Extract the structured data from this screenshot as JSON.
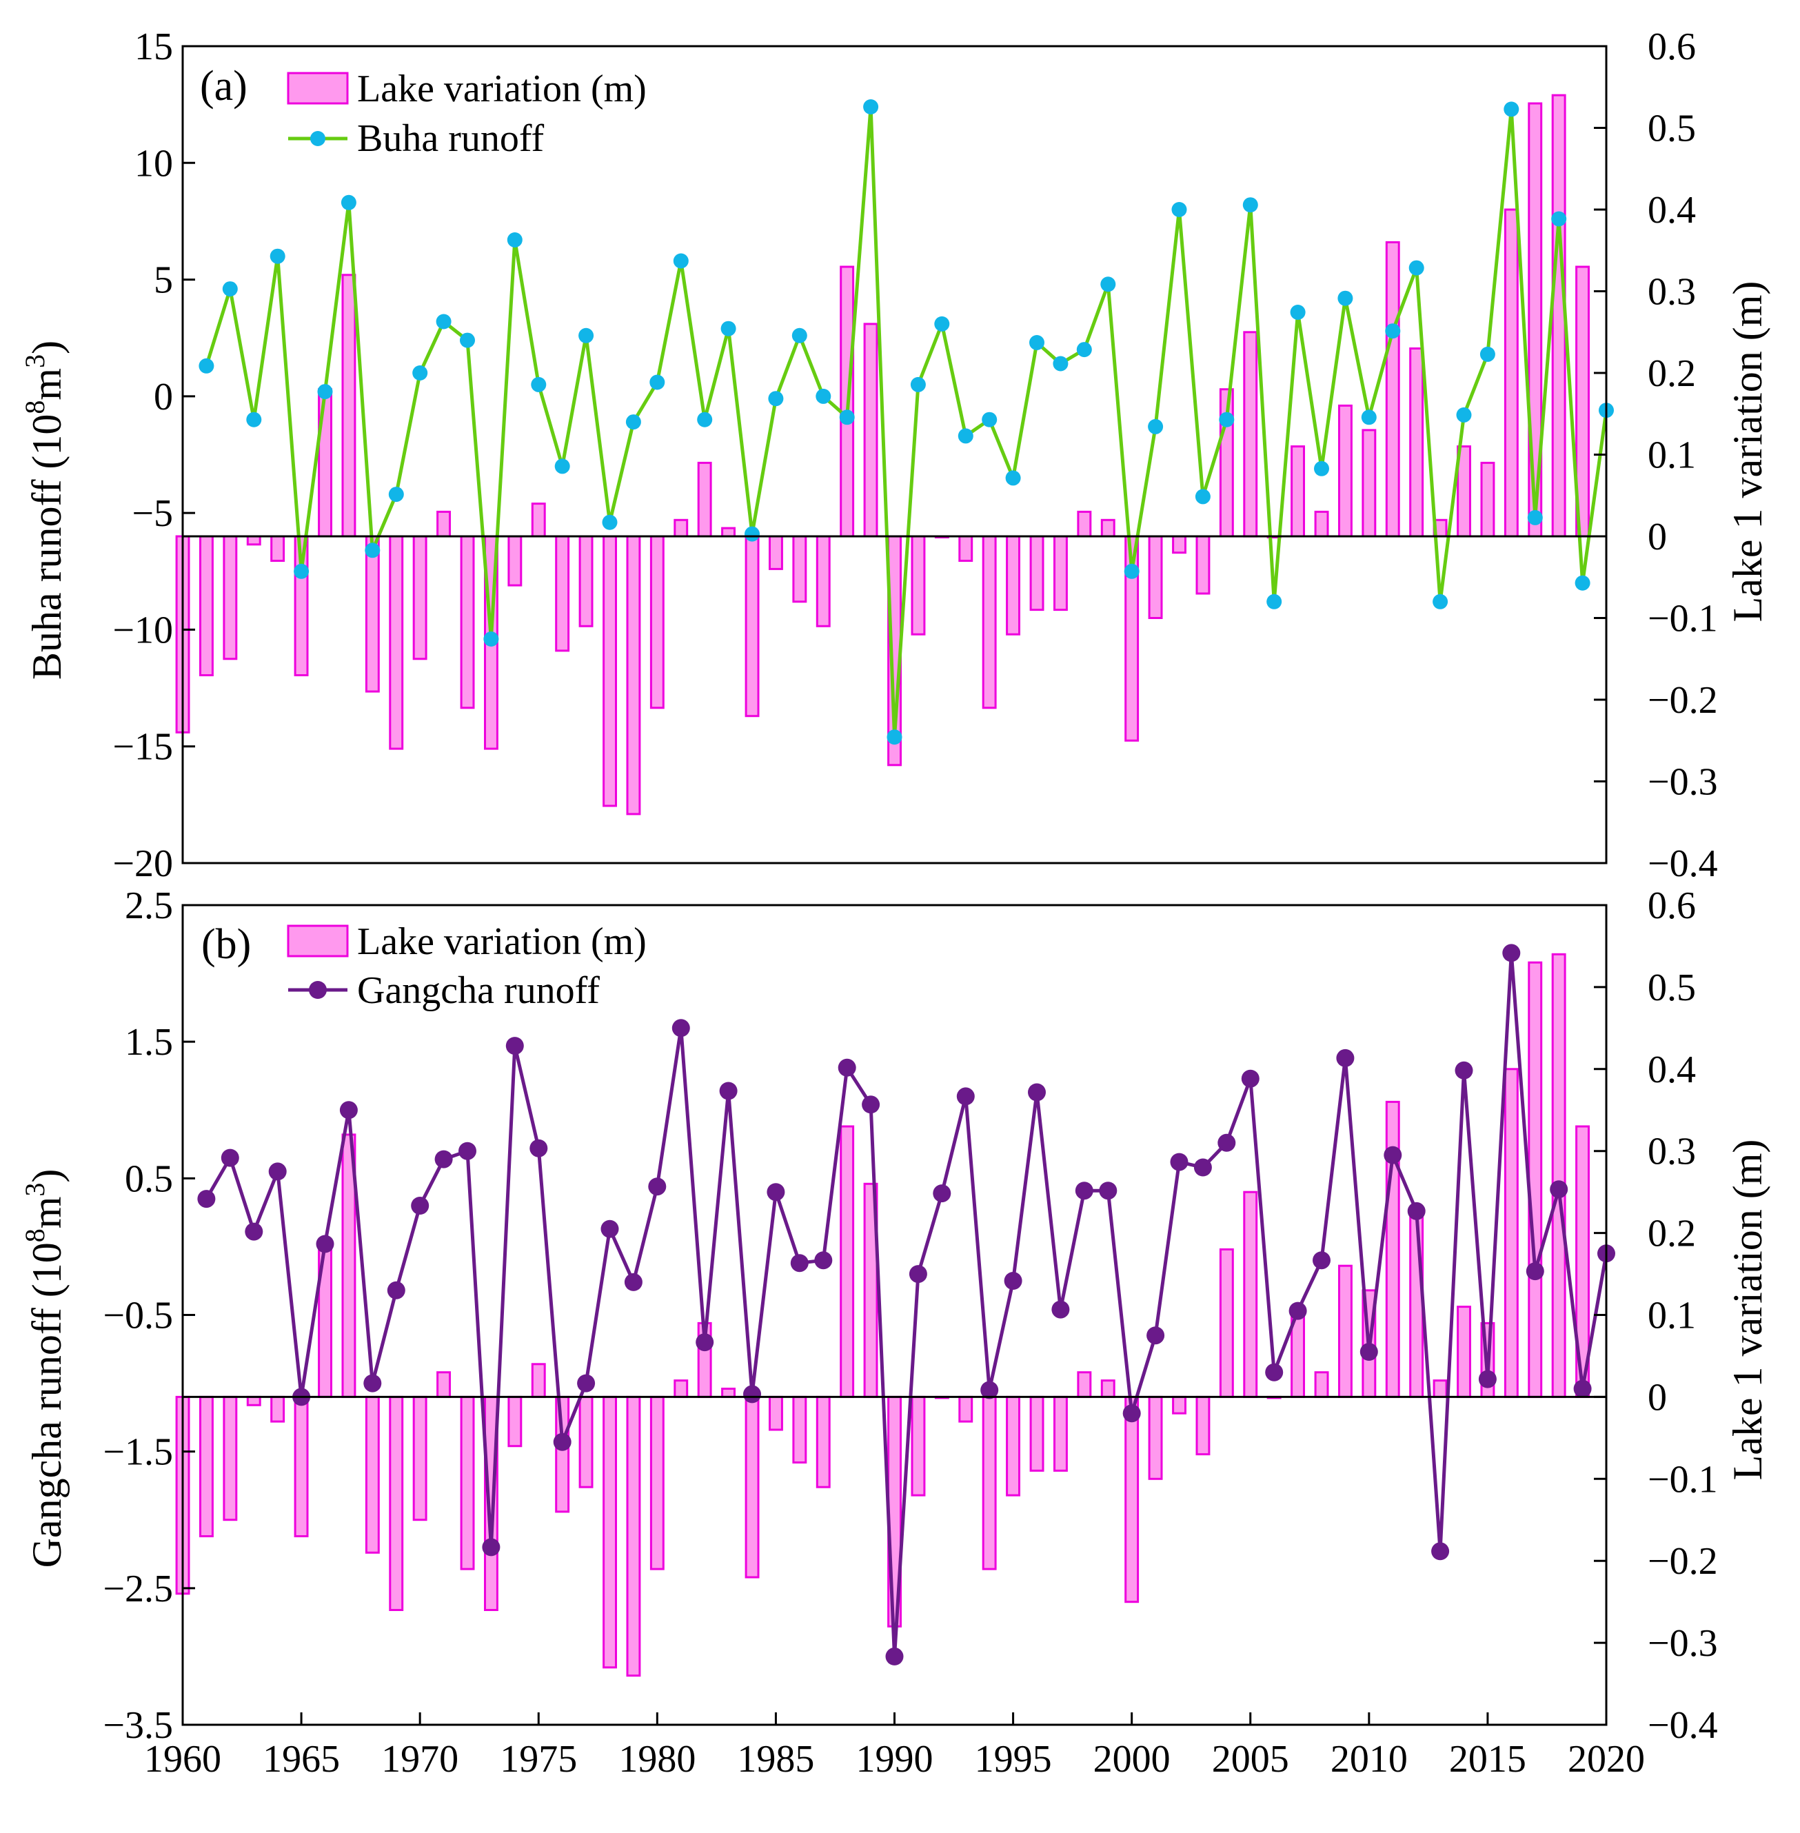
{
  "figure": {
    "x_ticks": [
      "1960",
      "1965",
      "1970",
      "1975",
      "1980",
      "1985",
      "1990",
      "1995",
      "2000",
      "2005",
      "2010",
      "2015",
      "2020"
    ]
  },
  "colors": {
    "bar_fill": "#ff99ee",
    "bar_stroke": "#ee00dd",
    "buha_line": "#66cc11",
    "buha_marker": "#11b5e8",
    "gangcha_line": "#6a1a8a",
    "zero_line": "#000000"
  },
  "chart_data": [
    {
      "type": "bar+line",
      "panel_label": "(a)",
      "ylabel": "Buha runoff (10⁸m³)",
      "ylabel_main": "Buha runoff (10",
      "ylabel_exp1": "8",
      "ylabel_mid": "m",
      "ylabel_exp2": "3",
      "ylabel_end": ")",
      "y2label": "Lake 1 variation (m)",
      "xlim": [
        1960,
        2020
      ],
      "ylim": [
        -20,
        15
      ],
      "y2lim": [
        -0.4,
        0.6
      ],
      "yticks": [
        "15",
        "10",
        "5",
        "0",
        "−5",
        "−10",
        "−15",
        "−20"
      ],
      "y2ticks": [
        "0.6",
        "0.5",
        "0.4",
        "0.3",
        "0.2",
        "0.1",
        "0",
        "−0.1",
        "−0.2",
        "−0.3",
        "−0.4"
      ],
      "legend": {
        "placement": "top-left",
        "bar_label": "Lake variation (m)",
        "line_label": "Buha runoff"
      },
      "years": [
        1960,
        1961,
        1962,
        1963,
        1964,
        1965,
        1966,
        1967,
        1968,
        1969,
        1970,
        1971,
        1972,
        1973,
        1974,
        1975,
        1976,
        1977,
        1978,
        1979,
        1980,
        1981,
        1982,
        1983,
        1984,
        1985,
        1986,
        1987,
        1988,
        1989,
        1990,
        1991,
        1992,
        1993,
        1994,
        1995,
        1996,
        1997,
        1998,
        1999,
        2000,
        2001,
        2002,
        2003,
        2004,
        2005,
        2006,
        2007,
        2008,
        2009,
        2010,
        2011,
        2012,
        2013,
        2014,
        2015,
        2016,
        2017,
        2018,
        2019
      ],
      "series": [
        {
          "name": "Lake variation (m)",
          "kind": "bar",
          "axis": "right",
          "values": [
            -0.24,
            -0.17,
            -0.15,
            -0.01,
            -0.03,
            -0.17,
            0.18,
            0.32,
            -0.19,
            -0.26,
            -0.15,
            0.03,
            -0.21,
            -0.26,
            -0.06,
            0.04,
            -0.14,
            -0.11,
            -0.33,
            -0.34,
            -0.21,
            0.02,
            0.09,
            0.01,
            -0.22,
            -0.04,
            -0.08,
            -0.11,
            0.33,
            0.26,
            -0.28,
            -0.12,
            0.0,
            -0.03,
            -0.21,
            -0.12,
            -0.09,
            -0.09,
            0.03,
            0.02,
            -0.25,
            -0.1,
            -0.02,
            -0.07,
            0.18,
            0.25,
            0.0,
            0.11,
            0.03,
            0.16,
            0.13,
            0.36,
            0.23,
            0.02,
            0.11,
            0.09,
            0.4,
            0.53,
            0.54,
            0.33
          ]
        },
        {
          "name": "Buha runoff",
          "kind": "line",
          "axis": "left",
          "x": [
            1961,
            1962,
            1963,
            1964,
            1965,
            1966,
            1967,
            1968,
            1969,
            1970,
            1971,
            1972,
            1973,
            1974,
            1975,
            1976,
            1977,
            1978,
            1979,
            1980,
            1981,
            1982,
            1983,
            1984,
            1985,
            1986,
            1987,
            1988,
            1989,
            1990,
            1991,
            1992,
            1993,
            1994,
            1995,
            1996,
            1997,
            1998,
            1999,
            2000,
            2001,
            2002,
            2003,
            2004,
            2005,
            2006,
            2007,
            2008,
            2009,
            2010,
            2011,
            2012,
            2013,
            2014,
            2015,
            2016,
            2017,
            2018,
            2019,
            2020
          ],
          "values": [
            1.3,
            4.6,
            -1.0,
            6.0,
            -7.5,
            0.2,
            8.3,
            -6.6,
            -4.2,
            1.0,
            3.2,
            2.4,
            -10.4,
            6.7,
            0.5,
            -3.0,
            2.6,
            -5.4,
            -1.1,
            0.6,
            5.8,
            -1.0,
            2.9,
            -5.9,
            -0.1,
            2.6,
            0.0,
            -0.9,
            12.4,
            -14.6,
            0.5,
            3.1,
            -1.7,
            -1.0,
            -3.5,
            2.3,
            1.4,
            2.0,
            4.8,
            -7.5,
            -1.3,
            8.0,
            -4.3,
            -1.0,
            8.2,
            -8.8,
            3.6,
            -3.1,
            4.2,
            -0.9,
            2.8,
            5.5,
            -8.8,
            -0.8,
            1.8,
            12.3,
            -5.2,
            7.6,
            -8.0,
            -0.6
          ]
        }
      ]
    },
    {
      "type": "bar+line",
      "panel_label": "(b)",
      "ylabel": "Gangcha runoff (10⁸m³)",
      "ylabel_main": "Gangcha runoff (10",
      "ylabel_exp1": "8",
      "ylabel_mid": "m",
      "ylabel_exp2": "3",
      "ylabel_end": ")",
      "y2label": "Lake 1 variation (m)",
      "xlim": [
        1960,
        2020
      ],
      "ylim": [
        -3.5,
        2.5
      ],
      "y2lim": [
        -0.4,
        0.6
      ],
      "yticks": [
        "2.5",
        "1.5",
        "0.5",
        "−0.5",
        "−1.5",
        "−2.5",
        "−3.5"
      ],
      "y2ticks": [
        "0.6",
        "0.5",
        "0.4",
        "0.3",
        "0.2",
        "0.1",
        "0",
        "−0.1",
        "−0.2",
        "−0.3",
        "−0.4"
      ],
      "legend": {
        "placement": "top-left",
        "bar_label": "Lake variation (m)",
        "line_label": "Gangcha runoff"
      },
      "years": [
        1960,
        1961,
        1962,
        1963,
        1964,
        1965,
        1966,
        1967,
        1968,
        1969,
        1970,
        1971,
        1972,
        1973,
        1974,
        1975,
        1976,
        1977,
        1978,
        1979,
        1980,
        1981,
        1982,
        1983,
        1984,
        1985,
        1986,
        1987,
        1988,
        1989,
        1990,
        1991,
        1992,
        1993,
        1994,
        1995,
        1996,
        1997,
        1998,
        1999,
        2000,
        2001,
        2002,
        2003,
        2004,
        2005,
        2006,
        2007,
        2008,
        2009,
        2010,
        2011,
        2012,
        2013,
        2014,
        2015,
        2016,
        2017,
        2018,
        2019
      ],
      "series": [
        {
          "name": "Lake variation (m)",
          "kind": "bar",
          "axis": "right",
          "values": [
            -0.24,
            -0.17,
            -0.15,
            -0.01,
            -0.03,
            -0.17,
            0.18,
            0.32,
            -0.19,
            -0.26,
            -0.15,
            0.03,
            -0.21,
            -0.26,
            -0.06,
            0.04,
            -0.14,
            -0.11,
            -0.33,
            -0.34,
            -0.21,
            0.02,
            0.09,
            0.01,
            -0.22,
            -0.04,
            -0.08,
            -0.11,
            0.33,
            0.26,
            -0.28,
            -0.12,
            0.0,
            -0.03,
            -0.21,
            -0.12,
            -0.09,
            -0.09,
            0.03,
            0.02,
            -0.25,
            -0.1,
            -0.02,
            -0.07,
            0.18,
            0.25,
            0.0,
            0.11,
            0.03,
            0.16,
            0.13,
            0.36,
            0.23,
            0.02,
            0.11,
            0.09,
            0.4,
            0.53,
            0.54,
            0.33
          ]
        },
        {
          "name": "Gangcha runoff",
          "kind": "line",
          "axis": "left",
          "x": [
            1961,
            1962,
            1963,
            1964,
            1965,
            1966,
            1967,
            1968,
            1969,
            1970,
            1971,
            1972,
            1973,
            1974,
            1975,
            1976,
            1977,
            1978,
            1979,
            1980,
            1981,
            1982,
            1983,
            1984,
            1985,
            1986,
            1987,
            1988,
            1989,
            1990,
            1991,
            1992,
            1993,
            1994,
            1995,
            1996,
            1997,
            1998,
            1999,
            2000,
            2001,
            2002,
            2003,
            2004,
            2005,
            2006,
            2007,
            2008,
            2009,
            2010,
            2011,
            2012,
            2013,
            2014,
            2015,
            2016,
            2017,
            2018,
            2019,
            2020
          ],
          "values": [
            0.35,
            0.65,
            0.11,
            0.55,
            -1.1,
            0.02,
            1.0,
            -1.0,
            -0.32,
            0.3,
            0.64,
            0.7,
            -2.2,
            1.47,
            0.72,
            -1.43,
            -1.0,
            0.13,
            -0.26,
            0.44,
            1.6,
            -0.7,
            1.14,
            -1.08,
            0.4,
            -0.12,
            -0.1,
            1.31,
            1.04,
            -3.0,
            -0.2,
            0.39,
            1.1,
            -1.05,
            -0.25,
            1.13,
            -0.46,
            0.41,
            0.41,
            -1.22,
            -0.65,
            0.62,
            0.58,
            0.76,
            1.23,
            -0.92,
            -0.47,
            -0.1,
            1.38,
            -0.77,
            0.67,
            0.26,
            -2.23,
            1.29,
            -0.97,
            2.15,
            -0.18,
            0.42,
            -1.04,
            -0.05
          ]
        }
      ]
    }
  ]
}
